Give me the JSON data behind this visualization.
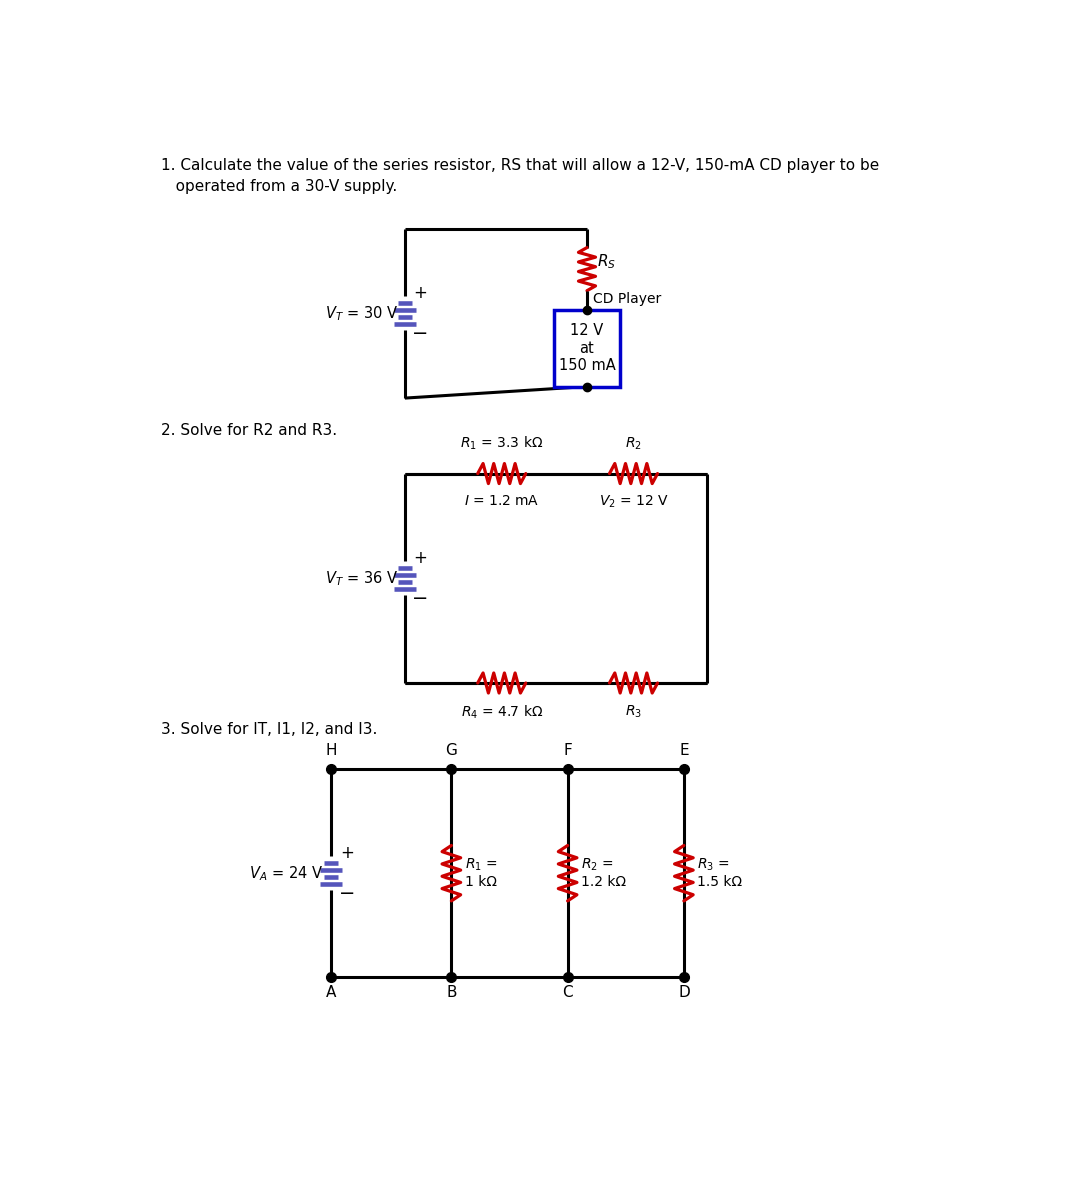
{
  "bg_color": "#ffffff",
  "text_color": "#000000",
  "wire_color": "#000000",
  "resistor_color": "#cc0000",
  "battery_color": "#5555bb",
  "cd_player_color": "#0000cc",
  "problem1": {
    "text1": "1. Calculate the value of the series resistor, RS that will allow a 12-V, 150-mA CD player to be",
    "text2": "   operated from a 30-V supply.",
    "battery_label": "$V_T$ = 30 V",
    "rs_label": "$R_S$",
    "cd_label": "CD Player",
    "cd_inner": "12 V\nat\n150 mA"
  },
  "problem2": {
    "text": "2. Solve for R2 and R3.",
    "battery_label": "$V_T$ = 36 V",
    "r1_label": "$R_1$ = 3.3 kΩ",
    "r2_label": "$R_2$",
    "r4_label": "$R_4$ = 4.7 kΩ",
    "r3_label": "$R_3$",
    "i_label": "$I$ = 1.2 mA",
    "v2_label": "$V_2$ = 12 V"
  },
  "problem3": {
    "text": "3. Solve for IT, I1, I2, and I3.",
    "battery_label": "$V_A$ = 24 V",
    "r1_label": "$R_1$ =\n1 kΩ",
    "r2_label": "$R_2$ =\n1.2 kΩ",
    "r3_label": "$R_3$ =\n1.5 kΩ",
    "nodes_top": [
      "H",
      "G",
      "F",
      "E"
    ],
    "nodes_bot": [
      "A",
      "B",
      "C",
      "D"
    ]
  }
}
